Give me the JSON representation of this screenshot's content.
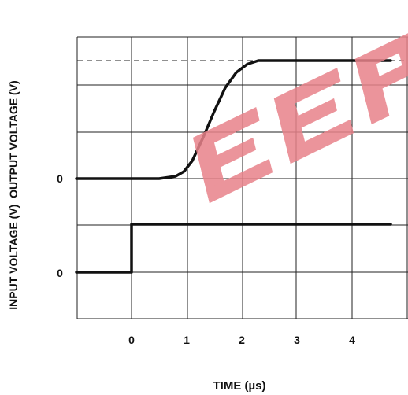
{
  "chart_data": {
    "type": "line",
    "xlabel": "TIME (µs)",
    "ylabel": "INPUT VOLTAGE (V)  OUTPUT VOLTAGE (V)",
    "x_ticks": [
      "0",
      "1",
      "2",
      "3",
      "4"
    ],
    "xlim": [
      -1,
      5
    ],
    "panels": [
      {
        "name": "output",
        "zero_label": "0",
        "ylim": [
          -0.15,
          1.15
        ],
        "series": [
          {
            "x": [
              -1,
              0,
              0.5,
              0.8,
              0.95,
              1.1,
              1.3,
              1.5,
              1.7,
              1.9,
              2.1,
              2.3,
              2.6,
              3.0,
              3.5,
              4.0,
              4.7
            ],
            "y": [
              0,
              0,
              0,
              0.02,
              0.06,
              0.15,
              0.35,
              0.57,
              0.77,
              0.9,
              0.97,
              1.0,
              1.0,
              1.0,
              1.0,
              1.0,
              1.0
            ]
          }
        ],
        "reference_level": 1.0
      },
      {
        "name": "input",
        "zero_label": "0",
        "ylim": [
          -0.5,
          1.5
        ],
        "series": [
          {
            "x": [
              -1,
              0,
              0,
              4.7
            ],
            "y": [
              0,
              0,
              1,
              1
            ]
          }
        ]
      }
    ],
    "watermark": "EEP"
  },
  "colors": {
    "trace": "#111111",
    "watermark": "#e8828a"
  }
}
